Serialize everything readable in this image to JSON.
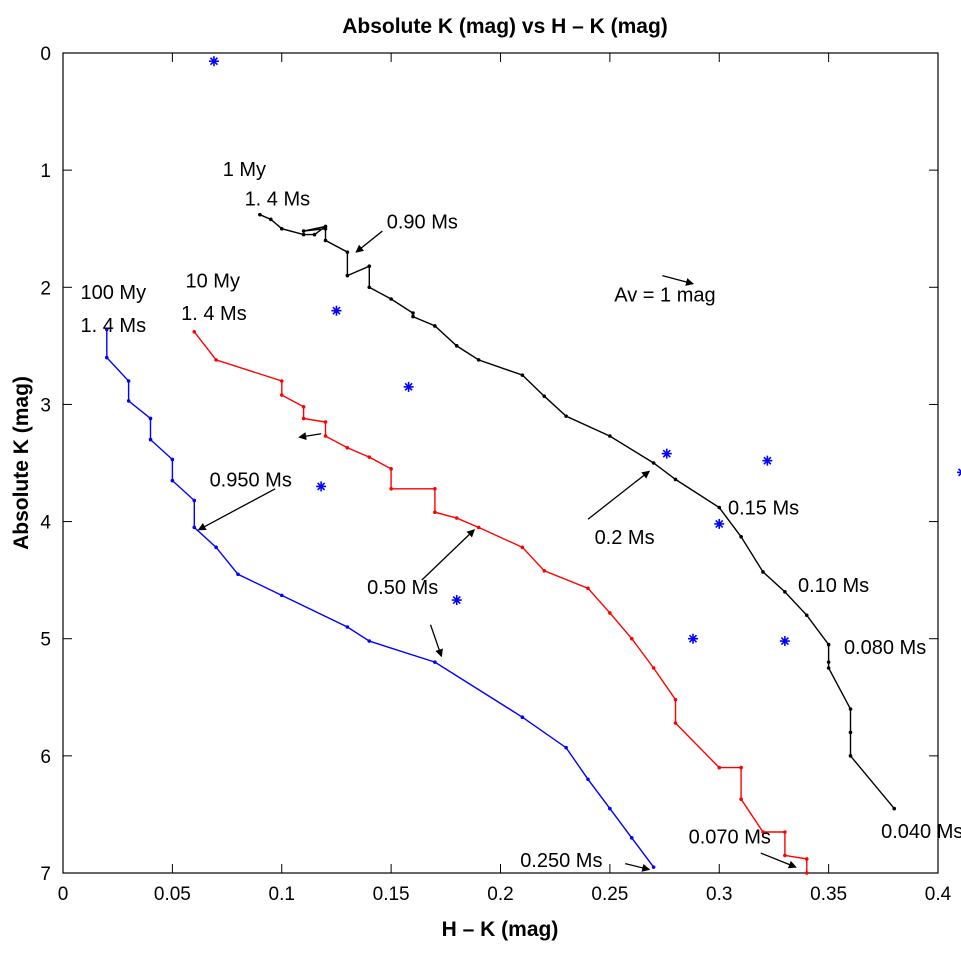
{
  "chart_data": {
    "type": "line",
    "title": "Absolute K (mag) vs H – K (mag)",
    "xlabel": "H – K (mag)",
    "ylabel": "Absolute K (mag)",
    "xlim": [
      0,
      0.4
    ],
    "ylim": [
      0,
      7
    ],
    "y_inverted": true,
    "grid": false,
    "xticks": [
      0,
      0.05,
      0.1,
      0.15,
      0.2,
      0.25,
      0.3,
      0.35,
      0.4
    ],
    "xtick_labels": [
      "0",
      "0.05",
      "0.1",
      "0.15",
      "0.2",
      "0.25",
      "0.3",
      "0.35",
      "0.4"
    ],
    "yticks": [
      0,
      1,
      2,
      3,
      4,
      5,
      6,
      7
    ],
    "ytick_labels": [
      "0",
      "1",
      "2",
      "3",
      "4",
      "5",
      "6",
      "7"
    ],
    "series": [
      {
        "color": "#000000",
        "points": [
          [
            0.09,
            1.38
          ],
          [
            0.095,
            1.42
          ],
          [
            0.1,
            1.5
          ],
          [
            0.11,
            1.55
          ],
          [
            0.115,
            1.55
          ],
          [
            0.12,
            1.48
          ],
          [
            0.11,
            1.52
          ],
          [
            0.12,
            1.5
          ],
          [
            0.12,
            1.6
          ],
          [
            0.13,
            1.7
          ],
          [
            0.13,
            1.9
          ],
          [
            0.14,
            1.82
          ],
          [
            0.14,
            2.0
          ],
          [
            0.15,
            2.1
          ],
          [
            0.16,
            2.22
          ],
          [
            0.16,
            2.25
          ],
          [
            0.17,
            2.33
          ],
          [
            0.18,
            2.5
          ],
          [
            0.19,
            2.62
          ],
          [
            0.21,
            2.75
          ],
          [
            0.22,
            2.93
          ],
          [
            0.23,
            3.1
          ],
          [
            0.25,
            3.27
          ],
          [
            0.27,
            3.5
          ],
          [
            0.28,
            3.64
          ],
          [
            0.3,
            3.88
          ],
          [
            0.31,
            4.13
          ],
          [
            0.32,
            4.43
          ],
          [
            0.33,
            4.6
          ],
          [
            0.34,
            4.8
          ],
          [
            0.35,
            5.05
          ],
          [
            0.35,
            5.2
          ],
          [
            0.35,
            5.25
          ],
          [
            0.36,
            5.6
          ],
          [
            0.36,
            5.8
          ],
          [
            0.36,
            6.0
          ],
          [
            0.38,
            6.45
          ]
        ]
      },
      {
        "color": "#ff0000",
        "points": [
          [
            0.06,
            2.38
          ],
          [
            0.07,
            2.62
          ],
          [
            0.1,
            2.8
          ],
          [
            0.1,
            2.92
          ],
          [
            0.11,
            3.02
          ],
          [
            0.11,
            3.12
          ],
          [
            0.12,
            3.15
          ],
          [
            0.12,
            3.27
          ],
          [
            0.13,
            3.37
          ],
          [
            0.14,
            3.45
          ],
          [
            0.15,
            3.55
          ],
          [
            0.15,
            3.72
          ],
          [
            0.17,
            3.72
          ],
          [
            0.17,
            3.92
          ],
          [
            0.18,
            3.97
          ],
          [
            0.19,
            4.05
          ],
          [
            0.21,
            4.22
          ],
          [
            0.22,
            4.42
          ],
          [
            0.24,
            4.57
          ],
          [
            0.25,
            4.78
          ],
          [
            0.26,
            5.0
          ],
          [
            0.27,
            5.25
          ],
          [
            0.28,
            5.52
          ],
          [
            0.28,
            5.72
          ],
          [
            0.3,
            6.1
          ],
          [
            0.31,
            6.1
          ],
          [
            0.31,
            6.37
          ],
          [
            0.32,
            6.65
          ],
          [
            0.33,
            6.65
          ],
          [
            0.33,
            6.85
          ],
          [
            0.34,
            6.88
          ],
          [
            0.34,
            7.0
          ]
        ]
      },
      {
        "color": "#0000ff",
        "points": [
          [
            0.02,
            2.36
          ],
          [
            0.02,
            2.6
          ],
          [
            0.03,
            2.8
          ],
          [
            0.03,
            2.97
          ],
          [
            0.04,
            3.12
          ],
          [
            0.04,
            3.3
          ],
          [
            0.05,
            3.47
          ],
          [
            0.05,
            3.65
          ],
          [
            0.06,
            3.82
          ],
          [
            0.06,
            4.05
          ],
          [
            0.07,
            4.22
          ],
          [
            0.08,
            4.45
          ],
          [
            0.1,
            4.63
          ],
          [
            0.13,
            4.9
          ],
          [
            0.14,
            5.02
          ],
          [
            0.17,
            5.2
          ],
          [
            0.21,
            5.67
          ],
          [
            0.23,
            5.93
          ],
          [
            0.24,
            6.2
          ],
          [
            0.25,
            6.45
          ],
          [
            0.26,
            6.7
          ],
          [
            0.27,
            6.95
          ]
        ]
      }
    ],
    "scatter_points": [
      [
        0.069,
        0.07
      ],
      [
        0.125,
        2.2
      ],
      [
        0.158,
        2.85
      ],
      [
        0.118,
        3.7
      ],
      [
        0.276,
        3.42
      ],
      [
        0.322,
        3.48
      ],
      [
        0.411,
        3.58
      ],
      [
        0.3,
        4.02
      ],
      [
        0.18,
        4.67
      ],
      [
        0.288,
        5.0
      ],
      [
        0.33,
        5.02
      ]
    ],
    "scatter_color": "#0000ff",
    "annotations": [
      {
        "text": "1 My",
        "x": 0.073,
        "y": 1.05
      },
      {
        "text": "1. 4 Ms",
        "x": 0.083,
        "y": 1.3
      },
      {
        "text": "0.90 Ms",
        "x": 0.148,
        "y": 1.5
      },
      {
        "text": "10 My",
        "x": 0.056,
        "y": 2.0
      },
      {
        "text": "1. 4 Ms",
        "x": 0.054,
        "y": 2.28
      },
      {
        "text": "100 My",
        "x": 0.008,
        "y": 2.1
      },
      {
        "text": "1. 4 Ms",
        "x": 0.008,
        "y": 2.38
      },
      {
        "text": "Av = 1 mag",
        "x": 0.252,
        "y": 2.12
      },
      {
        "text": "0.950 Ms",
        "x": 0.067,
        "y": 3.7
      },
      {
        "text": "0.2 Ms",
        "x": 0.243,
        "y": 4.19
      },
      {
        "text": "0.15 Ms",
        "x": 0.304,
        "y": 3.94
      },
      {
        "text": "0.50 Ms",
        "x": 0.139,
        "y": 4.62
      },
      {
        "text": "0.10 Ms",
        "x": 0.336,
        "y": 4.6
      },
      {
        "text": "0.080 Ms",
        "x": 0.357,
        "y": 5.13
      },
      {
        "text": "0.040 Ms",
        "x": 0.374,
        "y": 6.7
      },
      {
        "text": "0.070 Ms",
        "x": 0.286,
        "y": 6.75
      },
      {
        "text": "0.250 Ms",
        "x": 0.209,
        "y": 6.95
      }
    ],
    "arrows": [
      {
        "from": [
          0.146,
          1.52
        ],
        "to": [
          0.134,
          1.7
        ]
      },
      {
        "from": [
          0.274,
          1.9
        ],
        "to": [
          0.288,
          1.97
        ]
      },
      {
        "from": [
          0.118,
          3.25
        ],
        "to": [
          0.108,
          3.28
        ]
      },
      {
        "from": [
          0.097,
          3.72
        ],
        "to": [
          0.062,
          4.07
        ]
      },
      {
        "from": [
          0.24,
          3.98
        ],
        "to": [
          0.268,
          3.57
        ]
      },
      {
        "from": [
          0.164,
          4.5
        ],
        "to": [
          0.188,
          4.07
        ]
      },
      {
        "from": [
          0.168,
          4.88
        ],
        "to": [
          0.173,
          5.15
        ]
      },
      {
        "from": [
          0.257,
          6.92
        ],
        "to": [
          0.268,
          6.97
        ]
      },
      {
        "from": [
          0.319,
          6.83
        ],
        "to": [
          0.335,
          6.95
        ]
      }
    ]
  }
}
